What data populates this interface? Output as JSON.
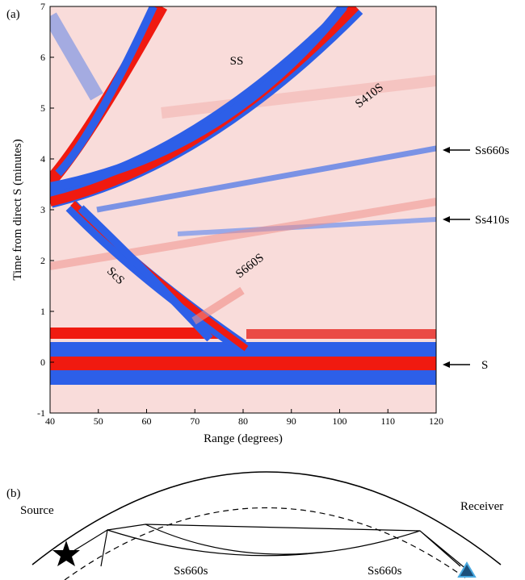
{
  "panel_a": {
    "label": "(a)",
    "y_label": "Time from direct S (minutes)",
    "x_label": "Range (degrees)",
    "xlim": [
      40,
      120
    ],
    "xticks": [
      40,
      50,
      60,
      70,
      80,
      90,
      100,
      110,
      120
    ],
    "ylim": [
      -1,
      7
    ],
    "yticks": [
      -1,
      0,
      1,
      2,
      3,
      4,
      5,
      6,
      7
    ],
    "phases": [
      "SS",
      "S410S",
      "ScS",
      "S660S"
    ],
    "arrow_labels": [
      "Ss660s",
      "Ss410s",
      "S"
    ]
  },
  "panel_b": {
    "label": "(b)",
    "source": "Source",
    "receiver": "Receiver",
    "ray_labels": [
      "Ss660s",
      "Ss660s"
    ]
  }
}
